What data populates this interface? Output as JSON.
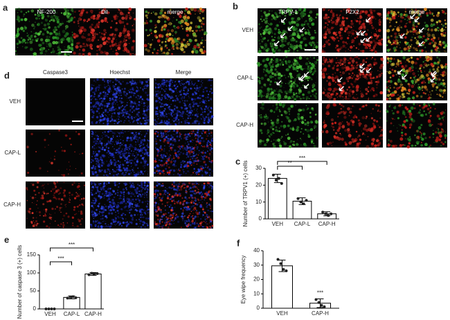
{
  "figure": {
    "a": {
      "letter": "a",
      "columns": [
        "NF-200",
        "DiI",
        "merge"
      ]
    },
    "b": {
      "letter": "b",
      "columns": [
        "TRPV-1",
        "P2X2",
        "merge"
      ],
      "rows": [
        "VEH",
        "CAP-L",
        "CAP-H"
      ]
    },
    "d": {
      "letter": "d",
      "columns": [
        "Caspase3",
        "Hoechst",
        "Merge"
      ],
      "rows": [
        "VEH",
        "CAP-L",
        "CAP-H"
      ]
    }
  },
  "chart_data": [
    {
      "type": "bar",
      "panel": "c",
      "ylabel": "Number of TRPV1 (+) cells",
      "color": "#ffffff",
      "categories": [
        "VEH",
        "CAP-L",
        "CAP-H"
      ],
      "values": [
        24,
        10.5,
        3
      ],
      "errors": [
        2.5,
        2,
        1.2
      ],
      "points": [
        [
          26,
          23,
          24,
          21
        ],
        [
          12,
          10,
          9,
          11
        ],
        [
          4,
          3,
          2,
          3
        ]
      ],
      "ylim": [
        0,
        30
      ],
      "yticks": [
        0,
        10,
        20,
        30
      ],
      "annotations": [
        "**",
        "***"
      ]
    },
    {
      "type": "bar",
      "panel": "e",
      "ylabel": "Number of caspase 3 (+) cells",
      "color": "#ffffff",
      "categories": [
        "VEH",
        "CAP-L",
        "CAP-H"
      ],
      "values": [
        0,
        32,
        97
      ],
      "errors": [
        0,
        4,
        4
      ],
      "points": [
        [
          0,
          0,
          0,
          0
        ],
        [
          30,
          33,
          34,
          31
        ],
        [
          95,
          99,
          97,
          98
        ]
      ],
      "ylim": [
        0,
        150
      ],
      "yticks": [
        0,
        50,
        100,
        150
      ],
      "annotations": [
        "***",
        "***"
      ]
    },
    {
      "type": "bar",
      "panel": "f",
      "ylabel": "Eye wipe frequency",
      "color": "#ffffff",
      "categories": [
        "VEH",
        "CAP-H"
      ],
      "values": [
        29.5,
        3.5
      ],
      "errors": [
        4,
        3
      ],
      "points": [
        [
          34,
          31,
          27,
          26
        ],
        [
          6,
          4,
          2,
          1
        ]
      ],
      "ylim": [
        0,
        40
      ],
      "yticks": [
        0,
        10,
        20,
        30,
        40
      ],
      "annotations": [
        "***"
      ]
    }
  ]
}
